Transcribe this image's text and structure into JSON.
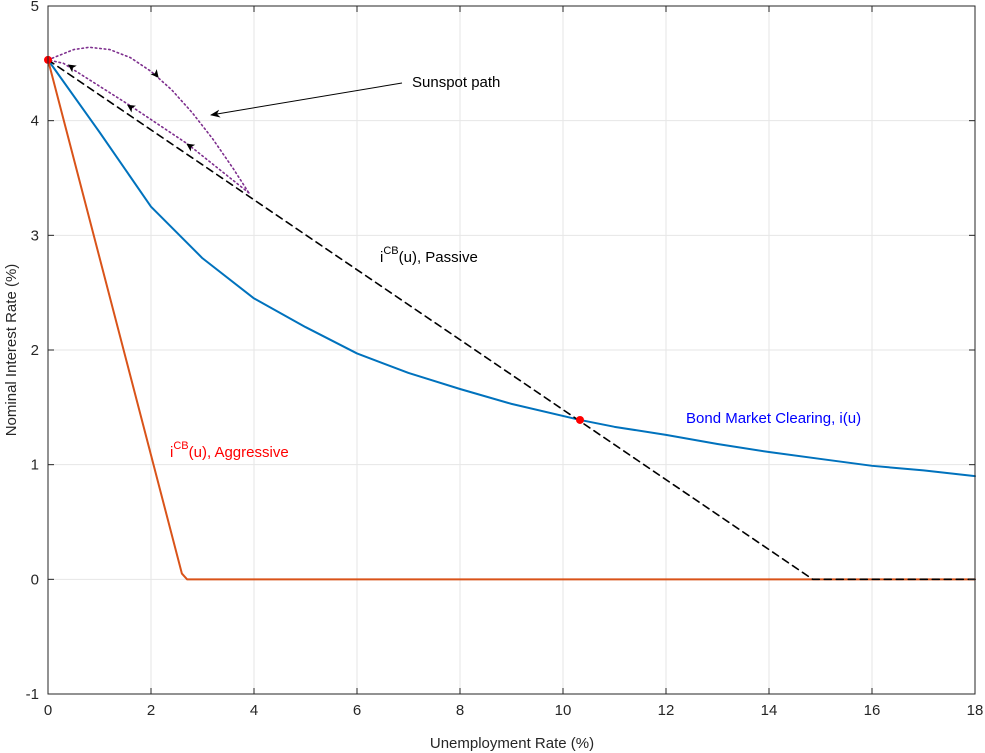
{
  "chart_data": {
    "type": "line",
    "title": "",
    "xlabel": "Unemployment Rate (%)",
    "ylabel": "Nominal Interest Rate (%)",
    "xlim": [
      0,
      18
    ],
    "ylim": [
      -1,
      5
    ],
    "xticks": [
      0,
      2,
      4,
      6,
      8,
      10,
      12,
      14,
      16,
      18
    ],
    "yticks": [
      -1,
      0,
      1,
      2,
      3,
      4,
      5
    ],
    "grid": true,
    "colors": {
      "bond": "#0072BD",
      "aggressive": "#D95319",
      "passive": "#000000",
      "sunspot_arc": "#7E2F8E",
      "points": "#FF0000",
      "bond_label": "#0000FF",
      "aggressive_label": "#FF0000",
      "grid": "#E6E6E6",
      "axis": "#262626"
    },
    "series": [
      {
        "key": "bond",
        "style": "solid",
        "points": [
          [
            0,
            4.53
          ],
          [
            1,
            3.9
          ],
          [
            2,
            3.25
          ],
          [
            3,
            2.8
          ],
          [
            4,
            2.45
          ],
          [
            5,
            2.2
          ],
          [
            6,
            1.97
          ],
          [
            7,
            1.8
          ],
          [
            8,
            1.66
          ],
          [
            9,
            1.53
          ],
          [
            10.33,
            1.39
          ],
          [
            11,
            1.33
          ],
          [
            12,
            1.26
          ],
          [
            13,
            1.18
          ],
          [
            14,
            1.11
          ],
          [
            15,
            1.05
          ],
          [
            16,
            0.99
          ],
          [
            17,
            0.95
          ],
          [
            18,
            0.9
          ]
        ]
      },
      {
        "key": "aggressive",
        "style": "solid",
        "points": [
          [
            0,
            4.53
          ],
          [
            2.6,
            0.05
          ],
          [
            2.7,
            0
          ],
          [
            18,
            0
          ]
        ]
      },
      {
        "key": "passive",
        "style": "dashed",
        "points": [
          [
            0,
            4.53
          ],
          [
            14.85,
            0
          ],
          [
            18,
            0
          ]
        ]
      },
      {
        "key": "sunspot_arc",
        "style": "dotted",
        "points": [
          [
            0,
            4.53
          ],
          [
            0.5,
            4.62
          ],
          [
            0.8,
            4.64
          ],
          [
            1.2,
            4.62
          ],
          [
            1.6,
            4.55
          ],
          [
            2,
            4.43
          ],
          [
            2.4,
            4.27
          ],
          [
            2.8,
            4.07
          ],
          [
            3.2,
            3.84
          ],
          [
            3.6,
            3.58
          ],
          [
            3.9,
            3.37
          ]
        ]
      },
      {
        "key": "sunspot_return",
        "style": "dotted",
        "points": [
          [
            3.9,
            3.37
          ],
          [
            2.7,
            3.8
          ],
          [
            1.6,
            4.13
          ],
          [
            0.3,
            4.5
          ],
          [
            0,
            4.53
          ]
        ]
      }
    ],
    "markers": [
      {
        "key": "start",
        "point": [
          0,
          4.53
        ]
      },
      {
        "key": "intersection",
        "point": [
          10.33,
          1.39
        ]
      }
    ],
    "path_arrows": [
      {
        "at": [
          2.1,
          4.4
        ],
        "dir": [
          1,
          -0.55
        ]
      },
      {
        "at": [
          0.45,
          4.47
        ],
        "dir": [
          -1,
          0.3
        ]
      },
      {
        "at": [
          1.6,
          4.12
        ],
        "dir": [
          -1,
          0.3
        ]
      },
      {
        "at": [
          2.75,
          3.78
        ],
        "dir": [
          -1,
          0.3
        ]
      }
    ],
    "annotations": {
      "sunspot": "Sunspot path",
      "passive_base": "i",
      "passive_sup": "CB",
      "passive_rest": "(u), Passive",
      "aggressive_base": "i",
      "aggressive_sup": "CB",
      "aggressive_rest": "(u), Aggressive",
      "bond": "Bond Market Clearing, i(u)"
    }
  }
}
